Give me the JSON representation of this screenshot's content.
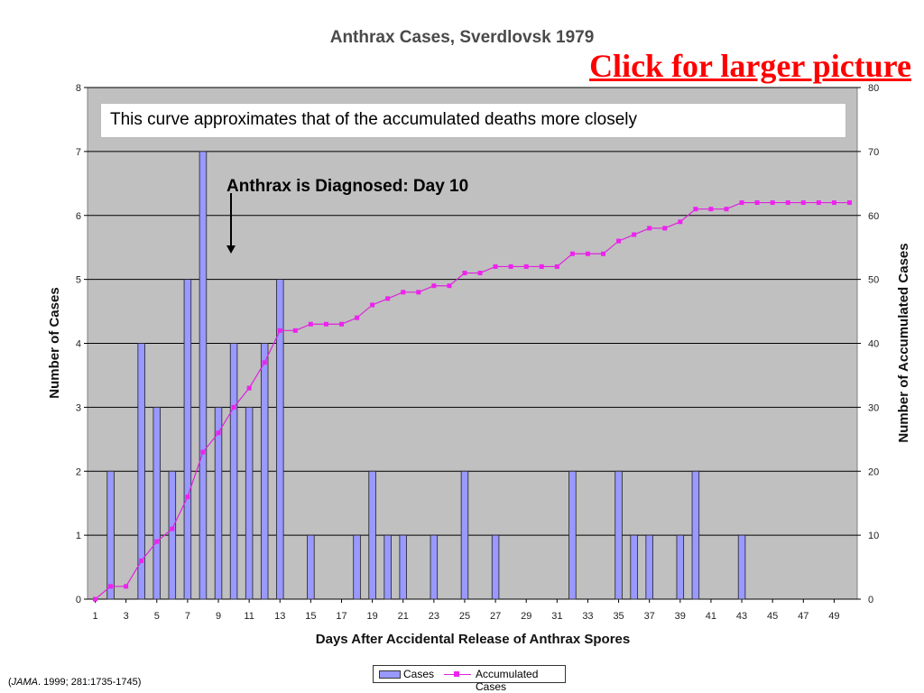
{
  "chart_data": {
    "type": "bar",
    "title": "Anthrax Cases, Sverdlovsk 1979",
    "xlabel": "Days After Accidental Release of Anthrax Spores",
    "ylabel": "Number of Cases",
    "y2label": "Number of Accumulated Cases",
    "x": [
      1,
      2,
      3,
      4,
      5,
      6,
      7,
      8,
      9,
      10,
      11,
      12,
      13,
      14,
      15,
      16,
      17,
      18,
      19,
      20,
      21,
      22,
      23,
      24,
      25,
      26,
      27,
      28,
      29,
      30,
      31,
      32,
      33,
      34,
      35,
      36,
      37,
      38,
      39,
      40,
      41,
      42,
      43,
      44,
      45,
      46,
      47,
      48,
      49,
      50
    ],
    "x_tick_labels": [
      "1",
      "3",
      "5",
      "7",
      "9",
      "11",
      "13",
      "15",
      "17",
      "19",
      "21",
      "23",
      "25",
      "27",
      "29",
      "31",
      "33",
      "35",
      "37",
      "39",
      "41",
      "43",
      "45",
      "47",
      "49"
    ],
    "ylim": [
      0,
      8
    ],
    "y_ticks": [
      "0",
      "1",
      "2",
      "3",
      "4",
      "5",
      "6",
      "7",
      "8"
    ],
    "y2lim": [
      0,
      80
    ],
    "y2_ticks": [
      "0",
      "10",
      "20",
      "30",
      "40",
      "50",
      "60",
      "70",
      "80"
    ],
    "grid": true,
    "legend_position": "bottom",
    "series": [
      {
        "name": "Cases",
        "kind": "bar",
        "axis": "left",
        "color": "#9999ff",
        "values": [
          0,
          2,
          0,
          4,
          3,
          2,
          5,
          7,
          3,
          4,
          3,
          4,
          5,
          0,
          1,
          0,
          0,
          1,
          2,
          1,
          1,
          0,
          1,
          0,
          2,
          0,
          1,
          0,
          0,
          0,
          0,
          2,
          0,
          0,
          2,
          1,
          1,
          0,
          1,
          2,
          0,
          0,
          1,
          0,
          0,
          0,
          0,
          0,
          0,
          0
        ]
      },
      {
        "name": "Accumulated Cases",
        "kind": "line",
        "axis": "right",
        "color": "#ee22ee",
        "values": [
          0,
          2,
          2,
          6,
          9,
          11,
          16,
          23,
          26,
          30,
          33,
          37,
          42,
          42,
          43,
          43,
          43,
          44,
          46,
          47,
          48,
          48,
          49,
          49,
          51,
          51,
          52,
          52,
          52,
          52,
          52,
          54,
          54,
          54,
          56,
          57,
          58,
          58,
          59,
          61,
          61,
          61,
          62,
          62,
          62,
          62,
          62,
          62,
          62,
          62
        ]
      }
    ]
  },
  "link_text": "Click for larger picture",
  "annotation_note": "This curve approximates that of the accumulated deaths more closely",
  "annotation_diagnosed": "Anthrax is Diagnosed: Day 10",
  "legend": {
    "cases": "Cases",
    "accumulated": "Accumulated Cases"
  },
  "citation": {
    "open": "(",
    "journal": "JAMA",
    "rest": ". 1999; 281:1735-1745)"
  }
}
